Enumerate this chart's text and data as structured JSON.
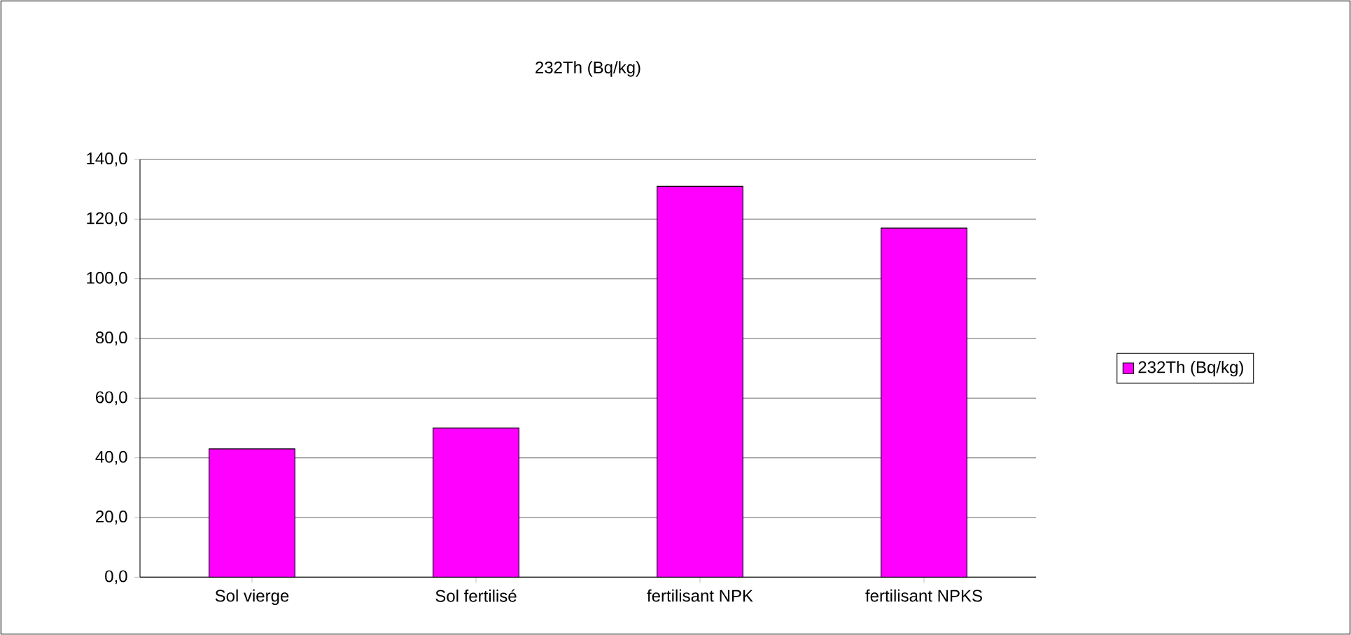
{
  "chart_data": {
    "type": "bar",
    "title": "232Th (Bq/kg)",
    "categories": [
      "Sol vierge",
      "Sol fertilisé",
      "fertilisant NPK",
      "fertilisant NPKS"
    ],
    "series": [
      {
        "name": "232Th (Bq/kg)",
        "color": "#ff00ff",
        "values": [
          43,
          50,
          131,
          117
        ]
      }
    ],
    "ylim": [
      0,
      140
    ],
    "yticks": [
      {
        "value": 0,
        "label": "0,0"
      },
      {
        "value": 20,
        "label": "20,0"
      },
      {
        "value": 40,
        "label": "40,0"
      },
      {
        "value": 60,
        "label": "60,0"
      },
      {
        "value": 80,
        "label": "80,0"
      },
      {
        "value": 100,
        "label": "100,0"
      },
      {
        "value": 120,
        "label": "120,0"
      },
      {
        "value": 140,
        "label": "140,0"
      }
    ],
    "grid": "y",
    "legend": "right"
  }
}
